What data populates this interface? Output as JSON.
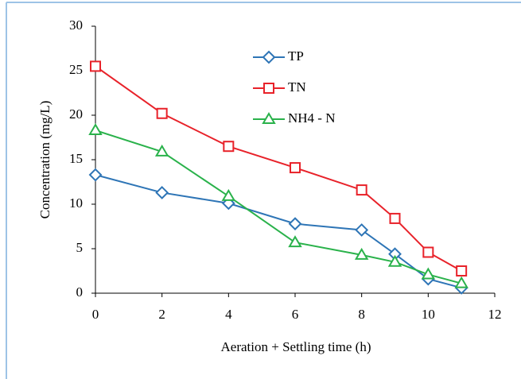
{
  "chart_data": {
    "type": "line",
    "x_label": "Aeration + Settling time (h)",
    "y_label": "Concentration  (mg/L)",
    "x": [
      0,
      2,
      4,
      6,
      8,
      9,
      10,
      11
    ],
    "series": [
      {
        "name": "TP",
        "color": "#2e75b6",
        "marker": "diamond",
        "values": [
          13.3,
          11.3,
          10.1,
          7.8,
          7.1,
          4.4,
          1.6,
          0.6
        ]
      },
      {
        "name": "TN",
        "color": "#e8222a",
        "marker": "square",
        "values": [
          25.5,
          20.2,
          16.5,
          14.1,
          11.6,
          8.4,
          4.6,
          2.5
        ]
      },
      {
        "name": "NH4 - N",
        "color": "#2ab24b",
        "marker": "triangle",
        "values": [
          18.3,
          15.9,
          10.9,
          5.7,
          4.3,
          3.5,
          2.1,
          1.1
        ]
      }
    ],
    "xlim": [
      0,
      12
    ],
    "xticks": [
      0,
      2,
      4,
      6,
      8,
      10,
      12
    ],
    "ylim": [
      0,
      30
    ],
    "yticks": [
      0,
      5,
      10,
      15,
      20,
      25,
      30
    ],
    "grid": false,
    "legend": "top"
  }
}
